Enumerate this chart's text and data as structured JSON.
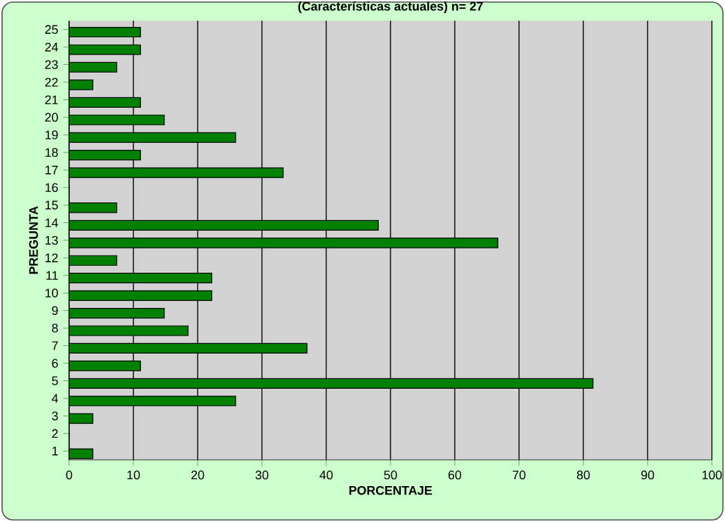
{
  "chart_data": {
    "type": "bar",
    "orientation": "horizontal",
    "title": "(Características actuales) n= 27",
    "xlabel": "PORCENTAJE",
    "ylabel": "PREGUNTA",
    "categories": [
      "25",
      "24",
      "23",
      "22",
      "21",
      "20",
      "19",
      "18",
      "17",
      "16",
      "15",
      "14",
      "13",
      "12",
      "11",
      "10",
      "9",
      "8",
      "7",
      "6",
      "5",
      "4",
      "3",
      "2",
      "1"
    ],
    "values": [
      11.1,
      11.1,
      7.4,
      3.7,
      11.1,
      14.8,
      25.9,
      11.1,
      33.3,
      0,
      7.4,
      48.1,
      66.7,
      7.4,
      22.2,
      22.2,
      14.8,
      18.5,
      37.0,
      11.1,
      81.5,
      25.9,
      3.7,
      0,
      3.7
    ],
    "color": "#008000",
    "xlim": [
      0,
      100
    ],
    "xticks": [
      0,
      10,
      20,
      30,
      40,
      50,
      60,
      70,
      80,
      90,
      100
    ],
    "grid": "x"
  }
}
